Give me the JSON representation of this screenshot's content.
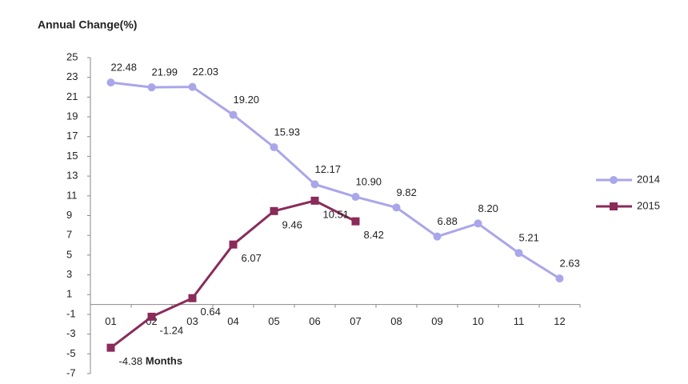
{
  "chart_data": {
    "type": "line",
    "title": "Annual Change(%)",
    "x_label": "Months",
    "categories": [
      "01",
      "02",
      "03",
      "04",
      "05",
      "06",
      "07",
      "08",
      "09",
      "10",
      "11",
      "12"
    ],
    "ylim": [
      -7,
      25
    ],
    "yticks": [
      -7,
      -5,
      -3,
      -1,
      1,
      3,
      5,
      7,
      9,
      11,
      13,
      15,
      17,
      19,
      21,
      23,
      25
    ],
    "legend": "right",
    "series": [
      {
        "name": "2014",
        "color": "#aaa6ea",
        "marker": "circle",
        "values": [
          22.48,
          21.99,
          22.03,
          19.2,
          15.93,
          12.17,
          10.9,
          9.82,
          6.88,
          8.2,
          5.21,
          2.63
        ],
        "value_labels": [
          "22.48",
          "21.99",
          "22.03",
          "19.20",
          "15.93",
          "12.17",
          "10.90",
          "9.82",
          "6.88",
          "8.20",
          "5.21",
          "2.63"
        ]
      },
      {
        "name": "2015",
        "color": "#8a2b5a",
        "marker": "square",
        "values": [
          -4.38,
          -1.24,
          0.64,
          6.07,
          9.46,
          10.51,
          8.42,
          null,
          null,
          null,
          null,
          null
        ],
        "value_labels": [
          "-4.38",
          "-1.24",
          "0.64",
          "6.07",
          "9.46",
          "10.51",
          "8.42",
          null,
          null,
          null,
          null,
          null
        ]
      }
    ]
  }
}
